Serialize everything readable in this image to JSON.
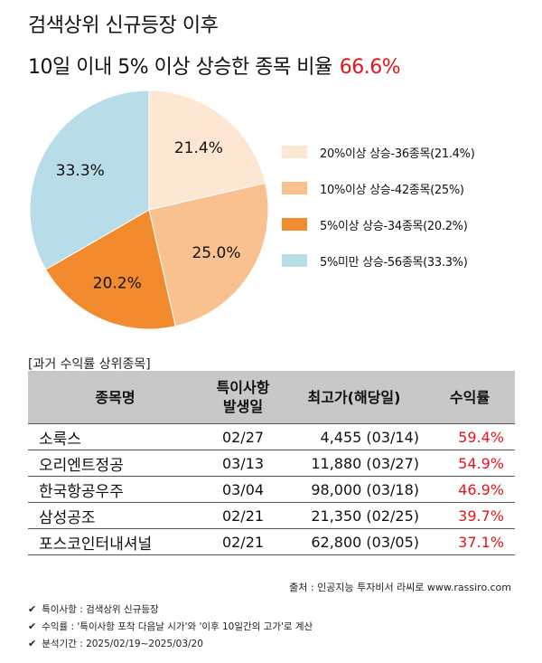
{
  "title_line1": "검색상위 신규등장 이후",
  "title_line2": "10일 이내 5% 이상 상승한 종목 비율",
  "title_pct": "66.6%",
  "chart_data": {
    "type": "pie",
    "slices": [
      {
        "label": "20%이상 상승-36종목(21.4%)",
        "value": 21.4,
        "data_label": "21.4%",
        "color": "#fde6d2"
      },
      {
        "label": "10%이상 상승-42종목(25%)",
        "value": 25.0,
        "data_label": "25.0%",
        "color": "#f9c090"
      },
      {
        "label": "5%이상 상승-34종목(20.2%)",
        "value": 20.2,
        "data_label": "20.2%",
        "color": "#f28a2e"
      },
      {
        "label": "5%미만 상승-56종목(33.3%)",
        "value": 33.3,
        "data_label": "33.3%",
        "color": "#b9dde8"
      }
    ]
  },
  "table": {
    "caption": "[과거 수익률 상위종목]",
    "headers": {
      "name": "종목명",
      "date_line1": "특이사항",
      "date_line2": "발생일",
      "high": "최고가(해당일)",
      "ret": "수익률"
    },
    "rows": [
      {
        "name": "소룩스",
        "date": "02/27",
        "high": "4,455 (03/14)",
        "ret": "59.4%"
      },
      {
        "name": "오리엔트정공",
        "date": "03/13",
        "high": "11,880 (03/27)",
        "ret": "54.9%"
      },
      {
        "name": "한국항공우주",
        "date": "03/04",
        "high": "98,000 (03/18)",
        "ret": "46.9%"
      },
      {
        "name": "삼성공조",
        "date": "02/21",
        "high": "21,350 (02/25)",
        "ret": "39.7%"
      },
      {
        "name": "포스코인터내셔널",
        "date": "02/21",
        "high": "62,800 (03/05)",
        "ret": "37.1%"
      }
    ]
  },
  "source": "출처 : 인공지능 투자비서 라씨로 www.rassiro.com",
  "notes": [
    {
      "check": "✔",
      "text": "특이사항 : 검색상위 신규등장"
    },
    {
      "check": "✔",
      "text": "수익률 : '특이사항 포착 다음날 시가'와 '이후 10일간의 고가'로 계산"
    },
    {
      "check": "✔",
      "text": "분석기간 : 2025/02/19~2025/03/20"
    }
  ]
}
